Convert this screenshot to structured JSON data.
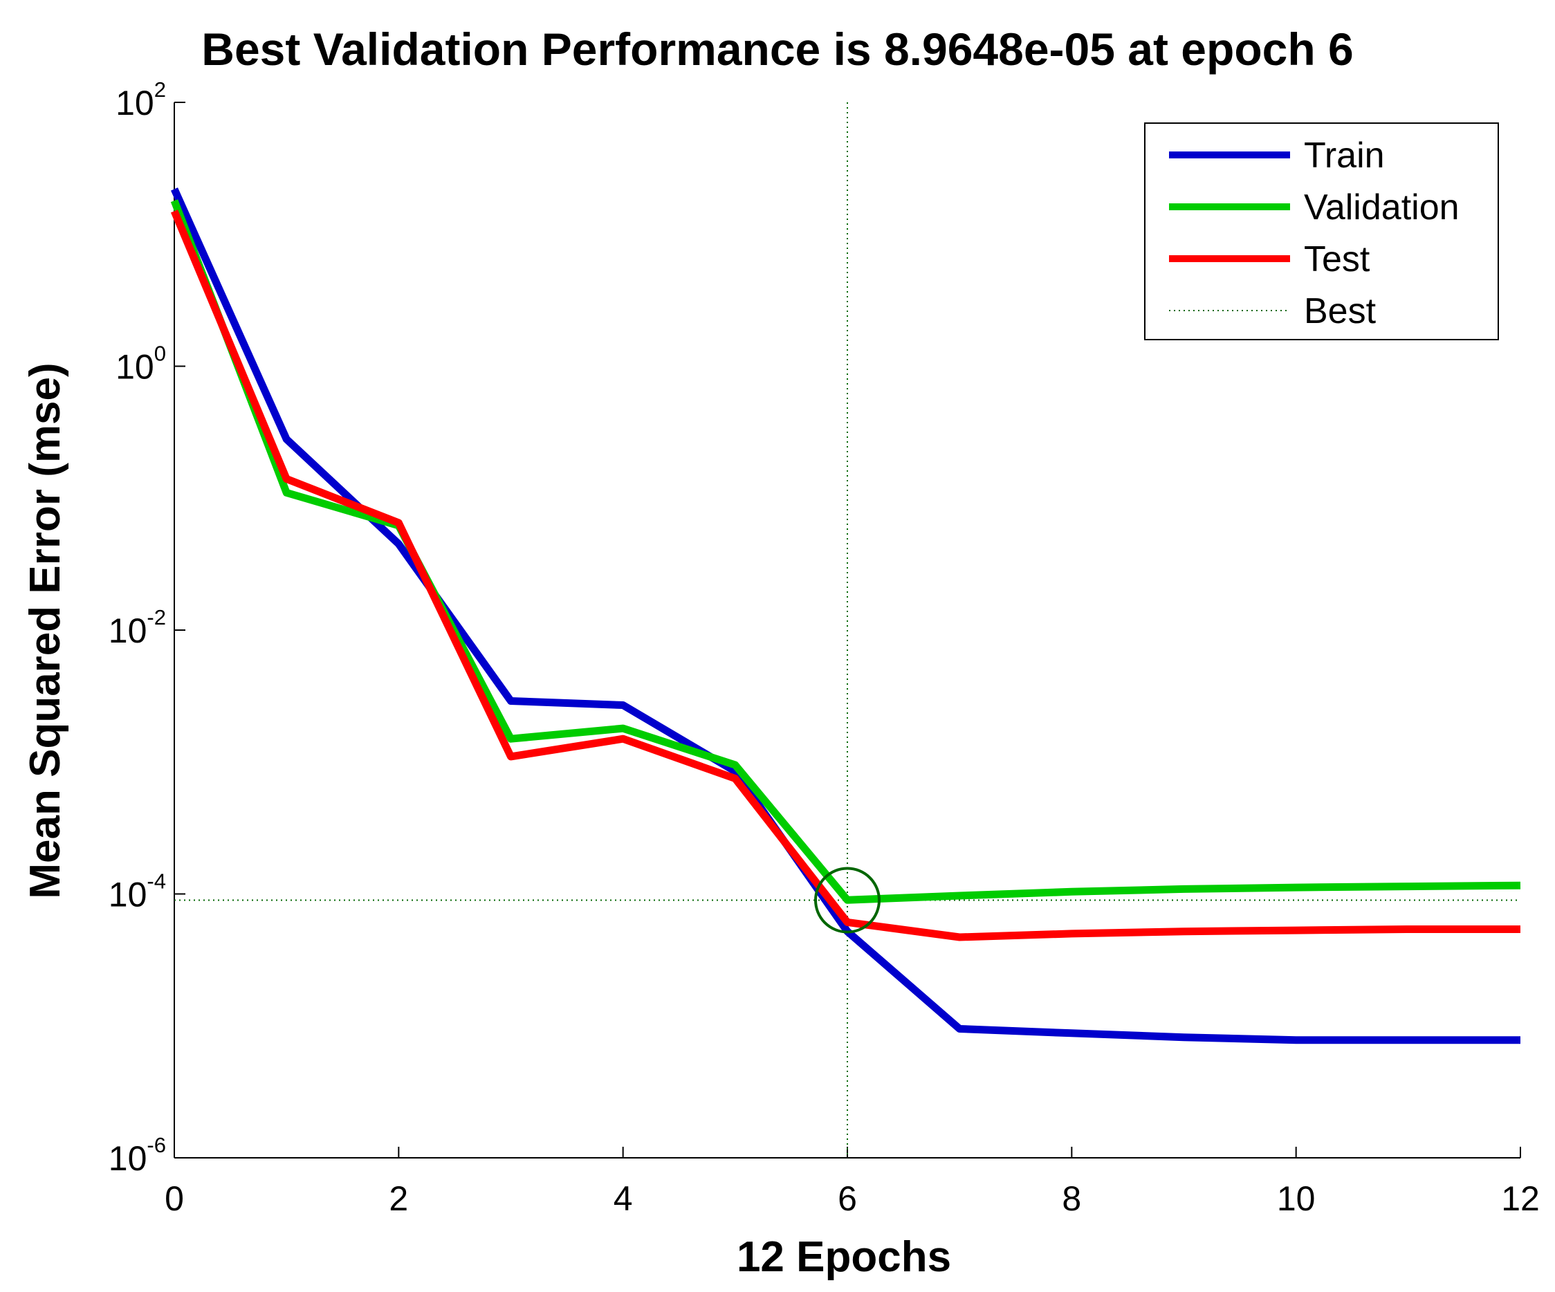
{
  "chart_data": {
    "type": "line",
    "title": "Best Validation Performance is 8.9648e-05 at epoch 6",
    "xlabel": "12 Epochs",
    "ylabel": "Mean Squared Error  (mse)",
    "yscale": "log",
    "xlim": [
      0,
      12
    ],
    "ylim_exp": [
      -6,
      2
    ],
    "x_ticks": [
      0,
      2,
      4,
      6,
      8,
      10,
      12
    ],
    "y_ticks": [
      {
        "base": "10",
        "exp": "-6",
        "value": 1e-06
      },
      {
        "base": "10",
        "exp": "-4",
        "value": 0.0001
      },
      {
        "base": "10",
        "exp": "-2",
        "value": 0.01
      },
      {
        "base": "10",
        "exp": "0",
        "value": 1
      },
      {
        "base": "10",
        "exp": "2",
        "value": 100
      }
    ],
    "x": [
      0,
      1,
      2,
      3,
      4,
      5,
      6,
      7,
      8,
      9,
      10,
      11,
      12
    ],
    "series": [
      {
        "name": "Train",
        "color": "#0000cc",
        "style": "solid",
        "values": [
          22,
          0.28,
          0.045,
          0.0029,
          0.0027,
          0.00085,
          5.2e-05,
          9.5e-06,
          8.8e-06,
          8.2e-06,
          7.8e-06,
          7.8e-06,
          7.8e-06
        ]
      },
      {
        "name": "Validation",
        "color": "#00cc00",
        "style": "solid",
        "values": [
          18,
          0.11,
          0.062,
          0.0015,
          0.0018,
          0.00095,
          9e-05,
          9.7e-05,
          0.000104,
          0.000109,
          0.000112,
          0.000114,
          0.000116
        ]
      },
      {
        "name": "Test",
        "color": "#ff0000",
        "style": "solid",
        "values": [
          15,
          0.14,
          0.065,
          0.0011,
          0.0015,
          0.00075,
          6.1e-05,
          4.7e-05,
          5e-05,
          5.2e-05,
          5.3e-05,
          5.4e-05,
          5.4e-05
        ]
      }
    ],
    "best": {
      "name": "Best",
      "epoch": 6,
      "value": 8.9648e-05,
      "color": "#006600",
      "style": "dotted"
    },
    "legend": [
      "Train",
      "Validation",
      "Test",
      "Best"
    ],
    "legend_position": "top-right",
    "grid": false
  }
}
